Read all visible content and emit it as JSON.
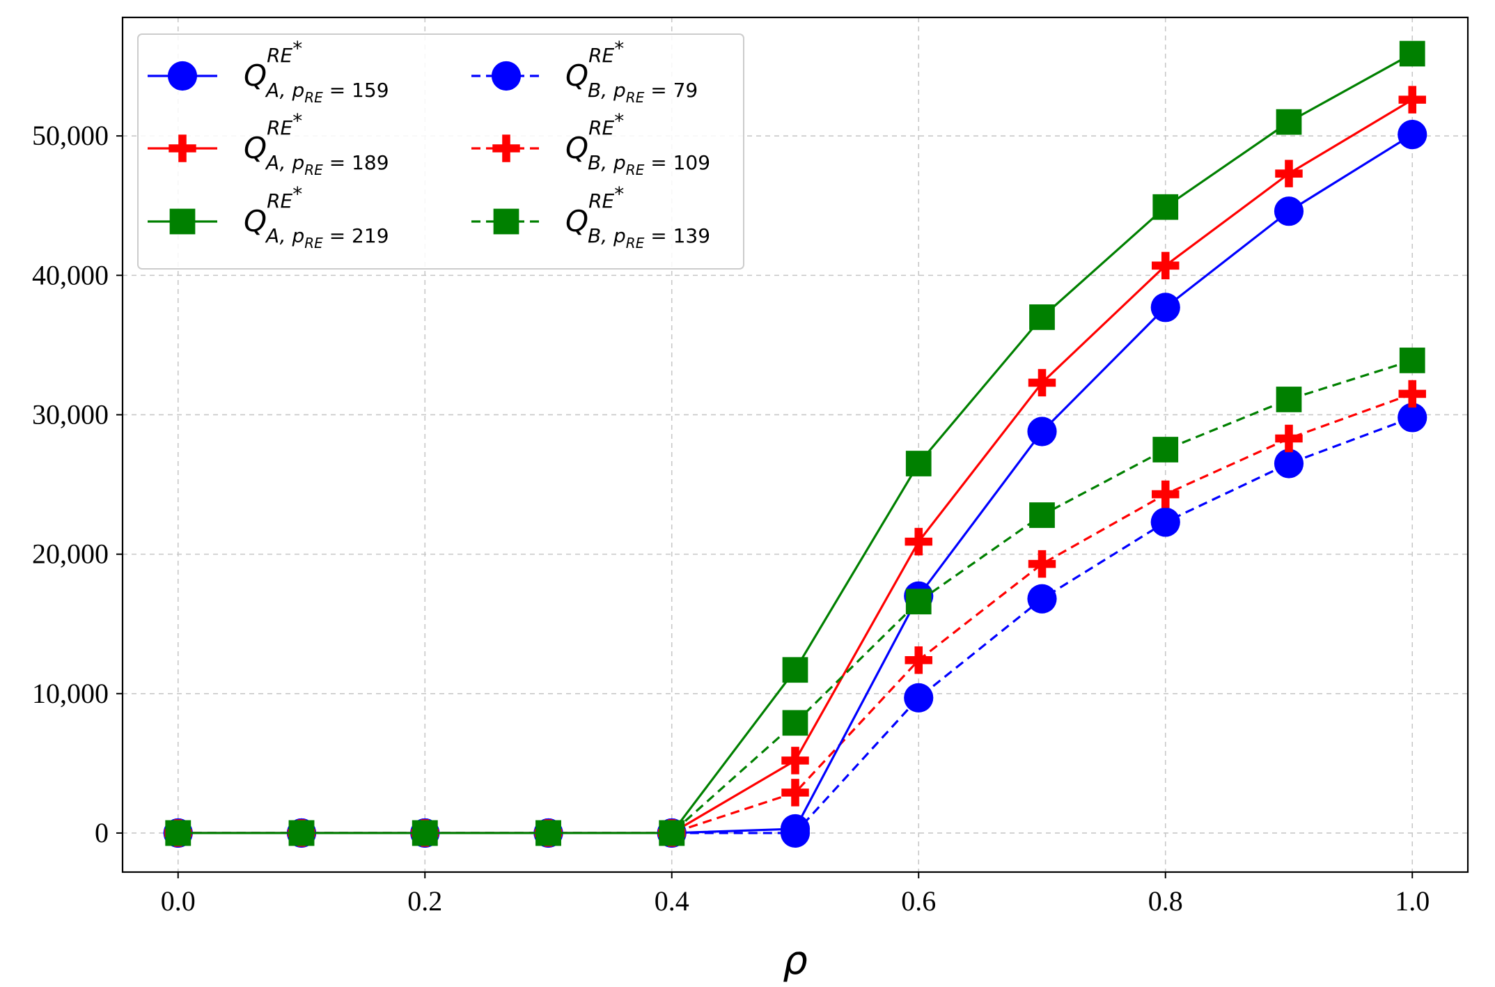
{
  "chart_data": {
    "type": "line",
    "title": "",
    "xlabel": "ρ",
    "ylabel": "",
    "xlim": [
      -0.045,
      1.045
    ],
    "ylim": [
      -2800,
      58500
    ],
    "xticks": [
      0.0,
      0.2,
      0.4,
      0.6,
      0.8,
      1.0
    ],
    "xtick_labels": [
      "0.0",
      "0.2",
      "0.4",
      "0.6",
      "0.8",
      "1.0"
    ],
    "yticks": [
      0,
      10000,
      20000,
      30000,
      40000,
      50000
    ],
    "ytick_labels": [
      "0",
      "10,000",
      "20,000",
      "30,000",
      "40,000",
      "50,000"
    ],
    "grid": true,
    "legend_position": "top-left",
    "x": [
      0.0,
      0.1,
      0.2,
      0.3,
      0.4,
      0.5,
      0.6,
      0.7,
      0.8,
      0.9,
      1.0
    ],
    "series": [
      {
        "name": "Q_{A, p_RE = 159}^{RE*}",
        "legend": {
          "main": "Q",
          "sup": "RE",
          "star": "*",
          "sub": "A, p",
          "subsub": "RE",
          "value": " = 159"
        },
        "color": "#0000ff",
        "linestyle": "solid",
        "marker": "circle",
        "values": [
          0,
          0,
          0,
          0,
          0,
          300,
          17000,
          28800,
          37700,
          44600,
          50100
        ]
      },
      {
        "name": "Q_{A, p_RE = 189}^{RE*}",
        "legend": {
          "main": "Q",
          "sup": "RE",
          "star": "*",
          "sub": "A, p",
          "subsub": "RE",
          "value": " = 189"
        },
        "color": "#ff0000",
        "linestyle": "solid",
        "marker": "plus",
        "values": [
          0,
          0,
          0,
          0,
          0,
          5200,
          20900,
          32300,
          40700,
          47300,
          52600
        ]
      },
      {
        "name": "Q_{A, p_RE = 219}^{RE*}",
        "legend": {
          "main": "Q",
          "sup": "RE",
          "star": "*",
          "sub": "A, p",
          "subsub": "RE",
          "value": " = 219"
        },
        "color": "#008000",
        "linestyle": "solid",
        "marker": "square",
        "values": [
          0,
          0,
          0,
          0,
          0,
          11700,
          26500,
          37000,
          44900,
          51000,
          55900
        ]
      },
      {
        "name": "Q_{B, p_RE = 79}^{RE*}",
        "legend": {
          "main": "Q",
          "sup": "RE",
          "star": "*",
          "sub": "B, p",
          "subsub": "RE",
          "value": " = 79"
        },
        "color": "#0000ff",
        "linestyle": "dashed",
        "marker": "circle",
        "values": [
          0,
          0,
          0,
          0,
          0,
          0,
          9700,
          16800,
          22300,
          26500,
          29800
        ]
      },
      {
        "name": "Q_{B, p_RE = 109}^{RE*}",
        "legend": {
          "main": "Q",
          "sup": "RE",
          "star": "*",
          "sub": "B, p",
          "subsub": "RE",
          "value": " = 109"
        },
        "color": "#ff0000",
        "linestyle": "dashed",
        "marker": "plus",
        "values": [
          0,
          0,
          0,
          0,
          0,
          2900,
          12400,
          19300,
          24300,
          28300,
          31500
        ]
      },
      {
        "name": "Q_{B, p_RE = 139}^{RE*}",
        "legend": {
          "main": "Q",
          "sup": "RE",
          "star": "*",
          "sub": "B, p",
          "subsub": "RE",
          "value": " = 139"
        },
        "color": "#008000",
        "linestyle": "dashed",
        "marker": "square",
        "values": [
          0,
          0,
          0,
          0,
          0,
          7900,
          16600,
          22800,
          27500,
          31100,
          33900
        ]
      }
    ]
  }
}
